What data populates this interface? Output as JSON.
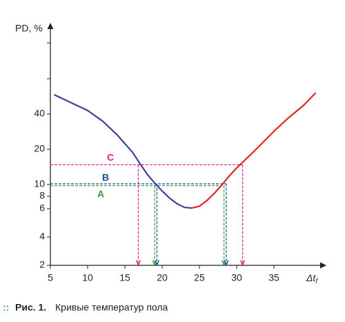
{
  "chart_data": {
    "type": "line",
    "ylabel": "PD, %",
    "xlabel": "Δt",
    "xlabel_subscript": "f",
    "caption_marker": "::",
    "caption_bold": "Рис. 1.",
    "caption": "Кривые температур пола",
    "xlim": [
      5,
      42
    ],
    "xticks": [
      5,
      10,
      15,
      20,
      25,
      30,
      35
    ],
    "yticks": [
      2,
      4,
      6,
      8,
      10,
      20,
      40
    ],
    "series": [
      {
        "name": "",
        "color": "#3d3f9b",
        "x": [
          5.5,
          8,
          10,
          12,
          14,
          16,
          17,
          18,
          19,
          20,
          21,
          22,
          23,
          24
        ],
        "values": [
          51,
          46,
          42,
          36,
          28,
          19.2,
          16,
          12.9,
          10.4,
          8.9,
          7.7,
          6.8,
          6.2,
          6.1
        ]
      },
      {
        "name": "",
        "color": "#e02424",
        "x": [
          24,
          25,
          26,
          27,
          28,
          29,
          30,
          31,
          33,
          35,
          37,
          39,
          40.6
        ],
        "values": [
          6.1,
          6.4,
          7.3,
          8.5,
          9.9,
          12.4,
          14.7,
          16.7,
          21.6,
          30.2,
          38,
          45,
          52
        ]
      }
    ],
    "levels": [
      {
        "name": "C",
        "color": "#e0218a",
        "value": 15.6,
        "x": [
          16.8,
          30.8
        ]
      },
      {
        "name": "B",
        "color": "#1f4e9c",
        "value": 10.2,
        "x": [
          19.3,
          28.6
        ]
      },
      {
        "name": "A",
        "color": "#2a9d48",
        "value": 9.8,
        "x": [
          19.0,
          28.3
        ]
      }
    ]
  }
}
